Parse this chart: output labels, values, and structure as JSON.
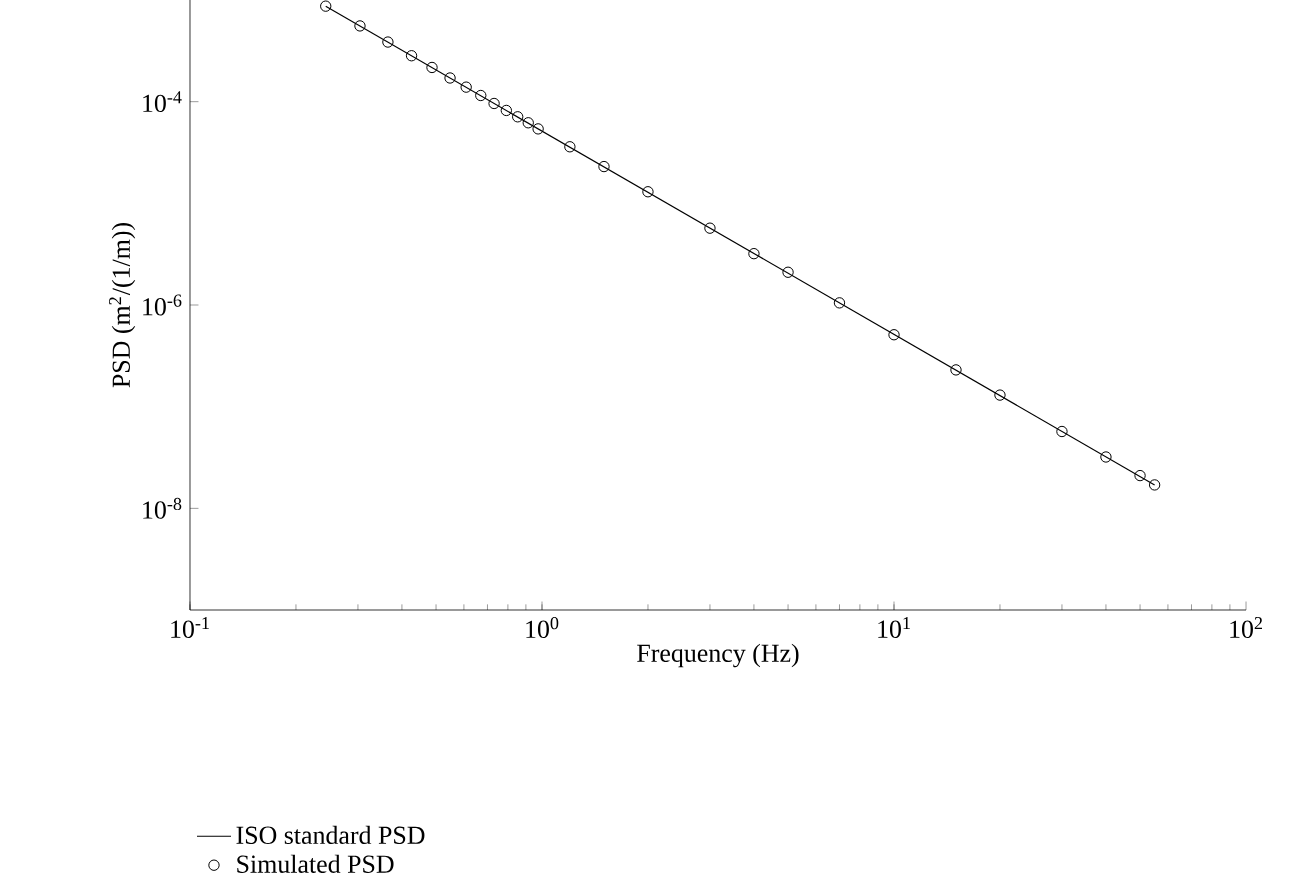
{
  "chart_data": {
    "type": "line",
    "xlabel": "Frequency (Hz)",
    "ylabel": "PSD (m$^{2}$/(1/m))",
    "log": "xy",
    "xlim": [
      0.1,
      100
    ],
    "ylim": [
      1e-09,
      0.001
    ],
    "xticks": [
      {
        "value": 0.1,
        "label": "10$^{-1}$"
      },
      {
        "value": 1,
        "label": "10$^{0}$"
      },
      {
        "value": 10,
        "label": "10$^{1}$"
      },
      {
        "value": 100,
        "label": "10$^{2}$"
      }
    ],
    "yticks": [
      {
        "value": 1e-08,
        "label": "10$^{-8}$"
      },
      {
        "value": 1e-06,
        "label": "10$^{-6}$"
      },
      {
        "value": 0.0001,
        "label": "10$^{-4}$"
      }
    ],
    "grid": false,
    "legend": "bottom left",
    "series": [
      {
        "name": "ISO standard PSD",
        "type": "line",
        "color": "#000000",
        "marker": "none",
        "line_style": "solid",
        "x": [
          0.243,
          55
        ],
        "values": [
          0.00087,
          1.7e-08
        ]
      },
      {
        "name": "Simulated PSD",
        "type": "scatter",
        "color": "#000000",
        "marker": "circle",
        "x": [
          0.243,
          0.304,
          0.365,
          0.426,
          0.487,
          0.548,
          0.609,
          0.67,
          0.731,
          0.792,
          0.853,
          0.914,
          0.975,
          1.2,
          1.5,
          2,
          3,
          4,
          5,
          7,
          10,
          15,
          20,
          30,
          40,
          50,
          55
        ],
        "values": [
          0.00087,
          0.000556,
          0.000386,
          0.000283,
          0.000217,
          0.000171,
          0.000139,
          0.000115,
          9.6e-05,
          8.2e-05,
          7.1e-05,
          6.2e-05,
          5.4e-05,
          3.6e-05,
          2.3e-05,
          1.3e-05,
          5.7e-06,
          3.2e-06,
          2.1e-06,
          1.05e-06,
          5.1e-07,
          2.3e-07,
          1.3e-07,
          5.7e-08,
          3.2e-08,
          2.1e-08,
          1.7e-08
        ]
      }
    ]
  }
}
